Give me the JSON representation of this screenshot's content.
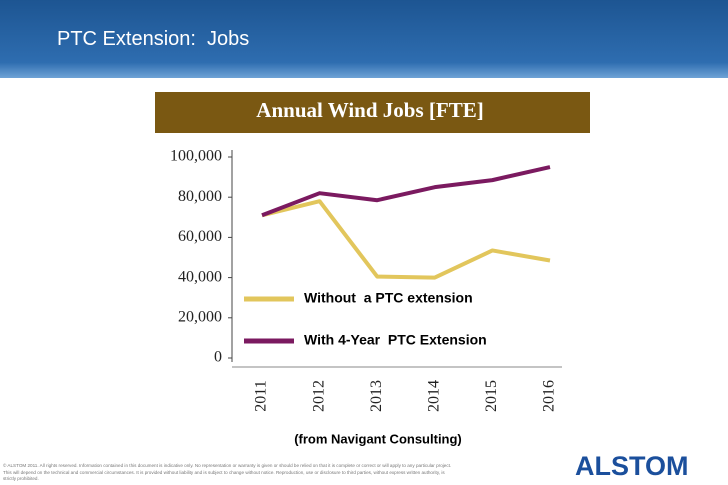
{
  "header": {
    "title": "PTC Extension:  Jobs"
  },
  "chart_data": {
    "type": "line",
    "title": "Annual Wind Jobs [FTE]",
    "categories": [
      "2011",
      "2012",
      "2013",
      "2014",
      "2015",
      "2016"
    ],
    "series": [
      {
        "name": "Without  a PTC extension",
        "color": "#e2c65c",
        "values": [
          71000,
          78000,
          40500,
          40000,
          53500,
          48500
        ]
      },
      {
        "name": "With 4-Year  PTC Extension",
        "color": "#7b1a60",
        "values": [
          71000,
          82000,
          78500,
          85000,
          88500,
          95000
        ]
      }
    ],
    "ylim": [
      0,
      100000
    ],
    "yticks": [
      0,
      {
        "value": 20000,
        "label": "20,000"
      },
      {
        "value": 40000,
        "label": "40,000"
      },
      {
        "value": 60000,
        "label": "60,000"
      },
      {
        "value": 80000,
        "label": "80,000"
      },
      {
        "value": 100000,
        "label": "100,000"
      }
    ],
    "legend": "lower left"
  },
  "source": "(from Navigant Consulting)",
  "footer": {
    "disclaimer": "© ALSTOM 2011. All rights reserved. Information contained in this document is indicative only. No representation or warranty is given or should be relied on that it is complete or correct or will apply to any particular project. This will depend on the technical and commercial circumstances. It is provided without liability and is subject to change without notice. Reproduction, use or disclosure to third parties, without express written authority, is strictly prohibited.",
    "logo": "ALSTOM"
  }
}
